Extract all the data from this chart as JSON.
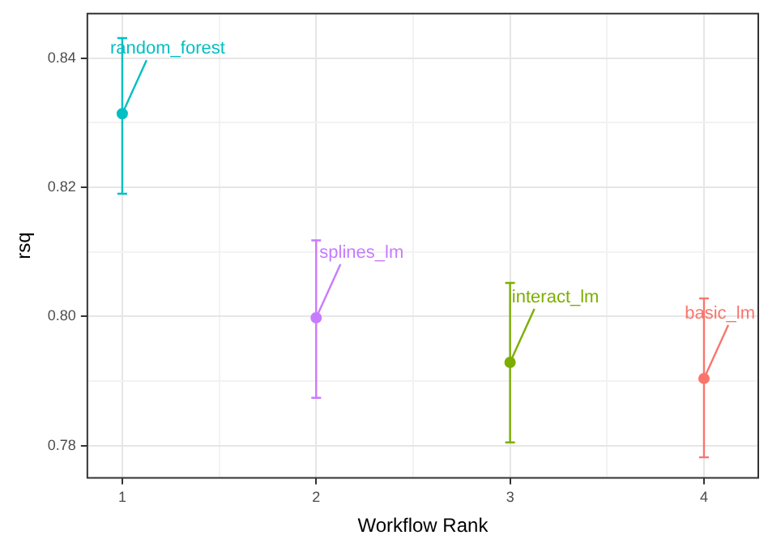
{
  "chart_data": {
    "type": "scatter",
    "xlabel": "Workflow Rank",
    "ylabel": "rsq",
    "xlim": [
      0.82,
      4.28
    ],
    "xticks": [
      1,
      {
        "value": 1.5,
        "label": null
      },
      2,
      {
        "value": 2.5,
        "label": null
      },
      3,
      {
        "value": 3.5,
        "label": null
      },
      4
    ],
    "ylim": [
      0.775,
      0.8469
    ],
    "yticks": [
      {
        "value": 0.78,
        "label": "0.78"
      },
      {
        "value": 0.79,
        "label": null
      },
      {
        "value": 0.8,
        "label": "0.80"
      },
      {
        "value": 0.81,
        "label": null
      },
      {
        "value": 0.82,
        "label": "0.82"
      },
      {
        "value": 0.83,
        "label": null
      },
      {
        "value": 0.84,
        "label": "0.84"
      }
    ],
    "grid": true,
    "legend": false,
    "marker": "circle",
    "series": [
      {
        "name": "random_forest",
        "color": "#00bfc4",
        "x": [
          1
        ],
        "values": [
          0.8314
        ],
        "errors": [
          [
            0.819,
            0.8431
          ]
        ]
      },
      {
        "name": "splines_lm",
        "color": "#c77cff",
        "x": [
          2
        ],
        "values": [
          0.7998
        ],
        "errors": [
          [
            0.7874,
            0.8118
          ]
        ]
      },
      {
        "name": "interact_lm",
        "color": "#7cae00",
        "x": [
          3
        ],
        "values": [
          0.7929
        ],
        "errors": [
          [
            0.7805,
            0.8052
          ]
        ]
      },
      {
        "name": "basic_lm",
        "color": "#f8766d",
        "x": [
          4
        ],
        "values": [
          0.7904
        ],
        "errors": [
          [
            0.7782,
            0.8028
          ]
        ]
      }
    ]
  }
}
